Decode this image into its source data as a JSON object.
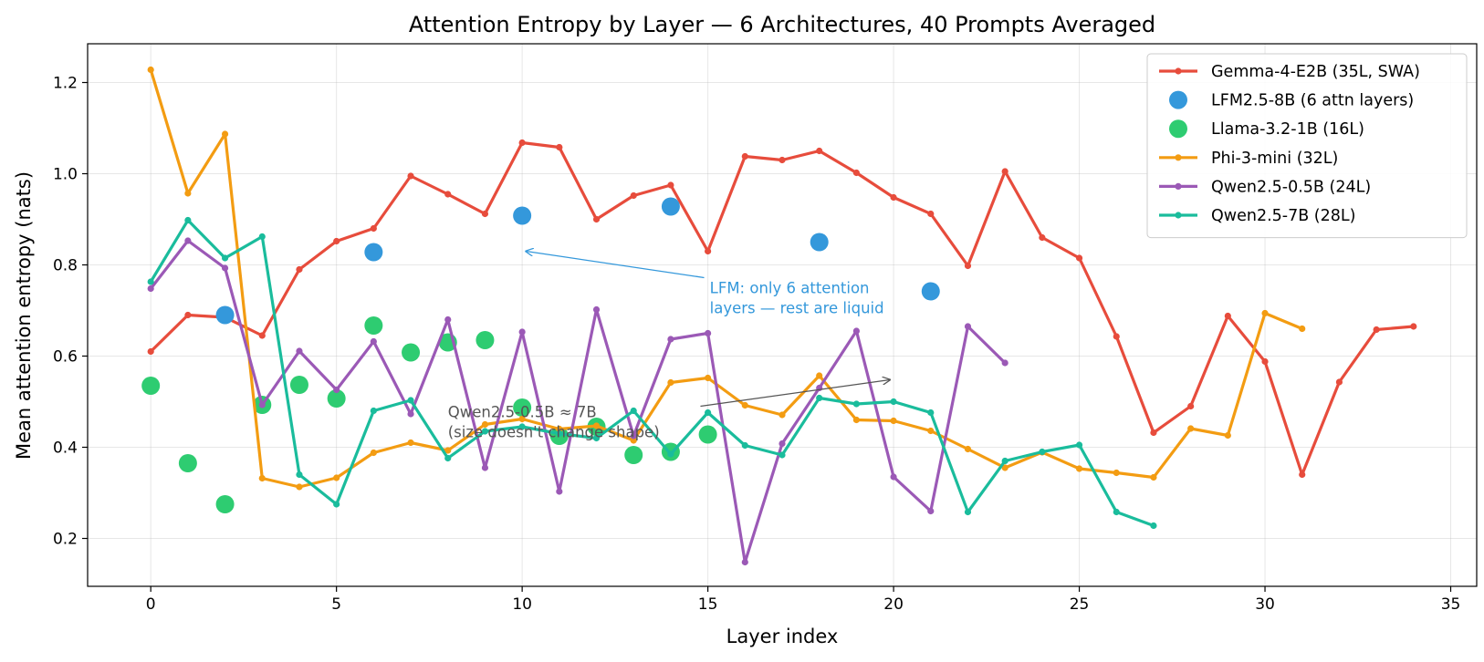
{
  "chart_data": {
    "type": "line",
    "title": "Attention Entropy by Layer — 6 Architectures, 40 Prompts Averaged",
    "xlabel": "Layer index",
    "ylabel": "Mean attention entropy (nats)",
    "xlim": [
      -1.7,
      35.7
    ],
    "ylim": [
      0.095,
      1.285
    ],
    "xticks": [
      0,
      5,
      10,
      15,
      20,
      25,
      30,
      35
    ],
    "yticks": [
      0.2,
      0.4,
      0.6,
      0.8,
      1.0,
      1.2
    ],
    "ytick_labels": [
      "0.2",
      "0.4",
      "0.6",
      "0.8",
      "1.0",
      "1.2"
    ],
    "grid": true,
    "legend_position": "top-right",
    "series": [
      {
        "name": "Gemma-4-E2B (35L, SWA)",
        "style": "line",
        "color": "#e74c3c",
        "x": [
          0,
          1,
          2,
          3,
          4,
          5,
          6,
          7,
          8,
          9,
          10,
          11,
          12,
          13,
          14,
          15,
          16,
          17,
          18,
          19,
          20,
          21,
          22,
          23,
          24,
          25,
          26,
          27,
          28,
          29,
          30,
          31,
          32,
          33,
          34
        ],
        "y": [
          0.61,
          0.69,
          0.685,
          0.645,
          0.79,
          0.852,
          0.88,
          0.995,
          0.955,
          0.912,
          1.068,
          1.058,
          0.9,
          0.952,
          0.975,
          0.83,
          1.038,
          1.03,
          1.05,
          1.002,
          0.948,
          0.912,
          0.798,
          1.005,
          0.86,
          0.815,
          0.643,
          0.432,
          0.49,
          0.688,
          0.588,
          0.34,
          0.543,
          0.658,
          0.665
        ]
      },
      {
        "name": "LFM2.5-8B (6 attn layers)",
        "style": "scatter",
        "color": "#3498db",
        "x": [
          2,
          6,
          10,
          14,
          18,
          21
        ],
        "y": [
          0.69,
          0.828,
          0.908,
          0.928,
          0.85,
          0.742
        ]
      },
      {
        "name": "Llama-3.2-1B (16L)",
        "style": "scatter",
        "color": "#2ecc71",
        "x": [
          0,
          1,
          2,
          3,
          4,
          5,
          6,
          7,
          8,
          9,
          10,
          11,
          12,
          13,
          14,
          15
        ],
        "y": [
          0.535,
          0.365,
          0.275,
          0.493,
          0.537,
          0.507,
          0.667,
          0.608,
          0.63,
          0.635,
          0.487,
          0.425,
          0.445,
          0.383,
          0.39,
          0.428
        ]
      },
      {
        "name": "Phi-3-mini (32L)",
        "style": "line",
        "color": "#f39c12",
        "x": [
          0,
          1,
          2,
          3,
          4,
          5,
          6,
          7,
          8,
          9,
          10,
          11,
          12,
          13,
          14,
          15,
          16,
          17,
          18,
          19,
          20,
          21,
          22,
          23,
          24,
          25,
          26,
          27,
          28,
          29,
          30,
          31
        ],
        "y": [
          1.228,
          0.957,
          1.087,
          0.332,
          0.313,
          0.333,
          0.388,
          0.41,
          0.393,
          0.45,
          0.462,
          0.44,
          0.447,
          0.415,
          0.542,
          0.552,
          0.492,
          0.471,
          0.557,
          0.46,
          0.458,
          0.436,
          0.396,
          0.355,
          0.389,
          0.353,
          0.344,
          0.334,
          0.441,
          0.426,
          0.694,
          0.66
        ]
      },
      {
        "name": "Qwen2.5-0.5B (24L)",
        "style": "line",
        "color": "#9b59b6",
        "x": [
          0,
          1,
          2,
          3,
          4,
          5,
          6,
          7,
          8,
          9,
          10,
          11,
          12,
          13,
          14,
          15,
          16,
          17,
          18,
          19,
          20,
          21,
          22,
          23
        ],
        "y": [
          0.748,
          0.853,
          0.793,
          0.493,
          0.611,
          0.526,
          0.632,
          0.473,
          0.68,
          0.355,
          0.653,
          0.303,
          0.702,
          0.425,
          0.637,
          0.65,
          0.148,
          0.408,
          0.53,
          0.655,
          0.335,
          0.26,
          0.665,
          0.585
        ]
      },
      {
        "name": "Qwen2.5-7B (28L)",
        "style": "line",
        "color": "#1abc9c",
        "x": [
          0,
          1,
          2,
          3,
          4,
          5,
          6,
          7,
          8,
          9,
          10,
          11,
          12,
          13,
          14,
          15,
          16,
          17,
          18,
          19,
          20,
          21,
          22,
          23,
          24,
          25,
          26,
          27
        ],
        "y": [
          0.763,
          0.898,
          0.815,
          0.862,
          0.34,
          0.275,
          0.48,
          0.503,
          0.376,
          0.435,
          0.445,
          0.43,
          0.42,
          0.48,
          0.385,
          0.476,
          0.404,
          0.383,
          0.508,
          0.495,
          0.5,
          0.476,
          0.258,
          0.37,
          0.39,
          0.405,
          0.258,
          0.228
        ]
      }
    ],
    "annotations": [
      {
        "lines": [
          "LFM: only 6 attention",
          "layers — rest are liquid"
        ],
        "color": "#3498db",
        "text_x": 15.05,
        "text_y": 0.738,
        "arrow_from": [
          14.9,
          0.772
        ],
        "arrow_to": [
          10.1,
          0.83
        ]
      },
      {
        "lines": [
          "Qwen2.5-0.5B ≈ 7B",
          "(size doesn't change shape)"
        ],
        "color": "#555555",
        "text_x": 8.0,
        "text_y": 0.466,
        "arrow_from": [
          14.8,
          0.49
        ],
        "arrow_to": [
          19.9,
          0.548
        ]
      }
    ]
  }
}
